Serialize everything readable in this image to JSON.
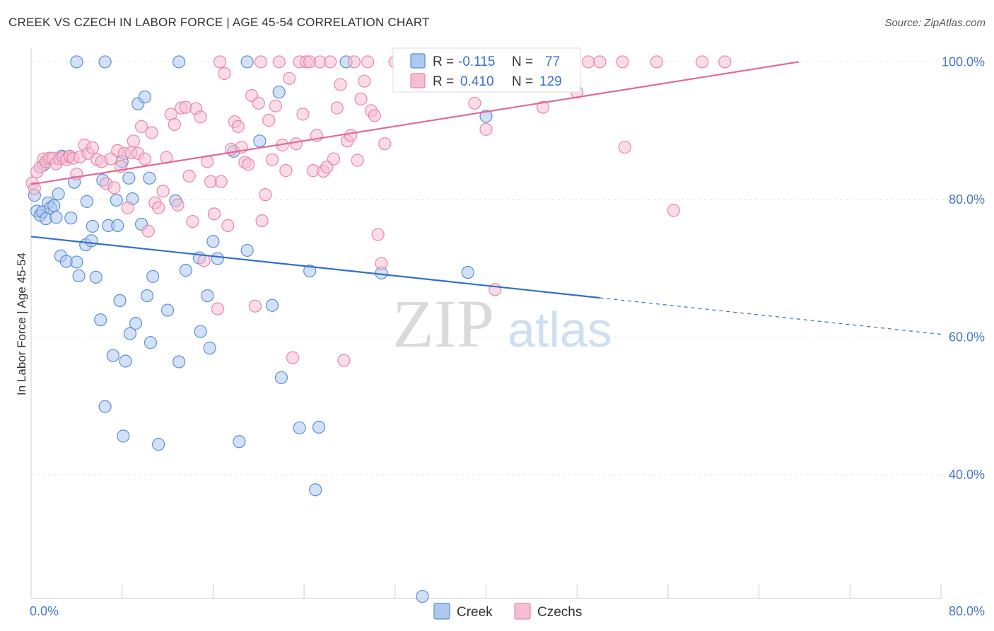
{
  "title": "CREEK VS CZECH IN LABOR FORCE | AGE 45-54 CORRELATION CHART",
  "source": "Source: ZipAtlas.com",
  "watermark": {
    "zip": "ZIP",
    "atlas": "atlas"
  },
  "colors": {
    "creek_fill": "#aec9ef",
    "creek_stroke": "#5b8fd6",
    "creek_line": "#2f6fcc",
    "czech_fill": "#f6bfd1",
    "czech_stroke": "#e886a8",
    "czech_line": "#e06a94",
    "axis_text": "#4a78c8",
    "grid": "#e3e3e3"
  },
  "legend": {
    "rows": [
      {
        "r_label": "R =",
        "r_value": "-0.115",
        "n_label": "N =",
        "n_value": "77"
      },
      {
        "r_label": "R =",
        "r_value": "0.410",
        "n_label": "N =",
        "n_value": "129"
      }
    ]
  },
  "bottom_legend": [
    "Creek",
    "Czechs"
  ],
  "chart_data": {
    "type": "scatter",
    "title": "CREEK VS CZECH IN LABOR FORCE | AGE 45-54 CORRELATION CHART",
    "xlabel": "",
    "ylabel": "In Labor Force | Age 45-54",
    "xlim": [
      0,
      80
    ],
    "ylim": [
      22,
      102
    ],
    "x_tick_labels": [
      "0.0%",
      "80.0%"
    ],
    "y_ticks": [
      40,
      60,
      80,
      100
    ],
    "y_tick_labels": [
      "40.0%",
      "60.0%",
      "80.0%",
      "100.0%"
    ],
    "grid": true,
    "legend_position": "top-center",
    "series": [
      {
        "name": "Creek",
        "r": -0.115,
        "n": 77,
        "trend": {
          "x": [
            0,
            50
          ],
          "y": [
            74.6,
            65.7
          ],
          "dashed_to": [
            80,
            60.4
          ]
        },
        "points": [
          [
            0.3,
            80.6
          ],
          [
            0.5,
            78.3
          ],
          [
            0.8,
            77.7
          ],
          [
            1.0,
            78.2
          ],
          [
            1.3,
            77.2
          ],
          [
            1.5,
            79.5
          ],
          [
            1.7,
            78.8
          ],
          [
            2.0,
            79.1
          ],
          [
            2.2,
            77.4
          ],
          [
            2.4,
            80.8
          ],
          [
            2.6,
            71.8
          ],
          [
            3.1,
            71.0
          ],
          [
            3.3,
            86.2
          ],
          [
            3.5,
            77.3
          ],
          [
            3.8,
            82.5
          ],
          [
            4.0,
            70.9
          ],
          [
            4.2,
            68.9
          ],
          [
            4.8,
            73.4
          ],
          [
            4.9,
            79.7
          ],
          [
            5.3,
            74.0
          ],
          [
            5.4,
            76.1
          ],
          [
            5.7,
            68.7
          ],
          [
            6.1,
            62.5
          ],
          [
            6.3,
            82.8
          ],
          [
            6.5,
            49.9
          ],
          [
            6.8,
            76.2
          ],
          [
            7.2,
            57.3
          ],
          [
            7.5,
            79.9
          ],
          [
            7.6,
            76.2
          ],
          [
            7.8,
            65.3
          ],
          [
            8.0,
            85.5
          ],
          [
            8.1,
            45.6
          ],
          [
            8.3,
            56.5
          ],
          [
            8.6,
            83.1
          ],
          [
            8.7,
            60.5
          ],
          [
            8.9,
            80.1
          ],
          [
            9.2,
            62.0
          ],
          [
            9.4,
            93.9
          ],
          [
            9.7,
            76.4
          ],
          [
            10.0,
            94.9
          ],
          [
            10.2,
            66.0
          ],
          [
            10.4,
            83.1
          ],
          [
            10.5,
            59.2
          ],
          [
            10.7,
            68.8
          ],
          [
            11.2,
            44.4
          ],
          [
            12.0,
            63.9
          ],
          [
            12.7,
            79.8
          ],
          [
            13.0,
            56.4
          ],
          [
            13.6,
            69.7
          ],
          [
            14.8,
            71.5
          ],
          [
            14.9,
            60.8
          ],
          [
            15.5,
            66.0
          ],
          [
            15.7,
            58.4
          ],
          [
            16.0,
            73.9
          ],
          [
            16.4,
            71.4
          ],
          [
            17.8,
            87.0
          ],
          [
            18.3,
            44.8
          ],
          [
            19.0,
            72.6
          ],
          [
            20.1,
            88.5
          ],
          [
            21.2,
            64.6
          ],
          [
            21.8,
            95.6
          ],
          [
            22.0,
            54.1
          ],
          [
            23.6,
            46.8
          ],
          [
            24.5,
            69.6
          ],
          [
            25.3,
            46.9
          ],
          [
            25.0,
            37.8
          ],
          [
            27.7,
            100.0
          ],
          [
            30.8,
            69.3
          ],
          [
            34.4,
            22.3
          ],
          [
            38.4,
            69.4
          ],
          [
            40.0,
            92.1
          ],
          [
            13.0,
            100.0
          ],
          [
            19.0,
            100.0
          ],
          [
            6.5,
            100.0
          ],
          [
            4.0,
            100.0
          ],
          [
            2.7,
            86.3
          ],
          [
            1.1,
            85.0
          ]
        ]
      },
      {
        "name": "Czechs",
        "r": 0.41,
        "n": 129,
        "trend": {
          "x": [
            0,
            67.5
          ],
          "y": [
            82.2,
            100.0
          ]
        },
        "points": [
          [
            0.1,
            82.4
          ],
          [
            0.3,
            81.6
          ],
          [
            0.5,
            84.0
          ],
          [
            0.8,
            84.7
          ],
          [
            1.1,
            85.9
          ],
          [
            1.3,
            85.5
          ],
          [
            1.6,
            86.0
          ],
          [
            1.9,
            86.0
          ],
          [
            2.2,
            85.2
          ],
          [
            2.5,
            85.9
          ],
          [
            2.8,
            86.1
          ],
          [
            3.1,
            85.8
          ],
          [
            3.4,
            86.3
          ],
          [
            3.7,
            86.0
          ],
          [
            4.0,
            83.7
          ],
          [
            4.3,
            86.2
          ],
          [
            4.7,
            87.9
          ],
          [
            5.0,
            86.7
          ],
          [
            5.4,
            87.5
          ],
          [
            5.8,
            85.8
          ],
          [
            6.2,
            85.5
          ],
          [
            6.6,
            82.3
          ],
          [
            7.0,
            85.9
          ],
          [
            7.3,
            81.7
          ],
          [
            7.6,
            87.1
          ],
          [
            7.9,
            84.8
          ],
          [
            8.2,
            86.7
          ],
          [
            8.5,
            78.8
          ],
          [
            8.8,
            86.8
          ],
          [
            9.0,
            88.5
          ],
          [
            9.4,
            86.7
          ],
          [
            9.7,
            90.6
          ],
          [
            10.0,
            85.9
          ],
          [
            10.3,
            75.4
          ],
          [
            10.6,
            89.7
          ],
          [
            10.9,
            79.5
          ],
          [
            11.2,
            78.8
          ],
          [
            11.6,
            81.2
          ],
          [
            11.9,
            86.1
          ],
          [
            12.3,
            92.4
          ],
          [
            12.6,
            90.9
          ],
          [
            12.9,
            79.2
          ],
          [
            13.2,
            93.3
          ],
          [
            13.6,
            93.4
          ],
          [
            13.9,
            83.4
          ],
          [
            14.2,
            76.8
          ],
          [
            14.5,
            93.2
          ],
          [
            14.9,
            92.0
          ],
          [
            15.2,
            71.1
          ],
          [
            15.5,
            85.5
          ],
          [
            15.8,
            82.6
          ],
          [
            16.1,
            77.9
          ],
          [
            16.4,
            64.1
          ],
          [
            16.7,
            82.6
          ],
          [
            17.0,
            98.3
          ],
          [
            17.3,
            76.2
          ],
          [
            17.6,
            87.3
          ],
          [
            17.9,
            91.3
          ],
          [
            18.2,
            90.6
          ],
          [
            18.5,
            87.6
          ],
          [
            18.8,
            85.4
          ],
          [
            19.1,
            85.1
          ],
          [
            19.4,
            95.1
          ],
          [
            19.7,
            64.5
          ],
          [
            20.0,
            94.0
          ],
          [
            20.3,
            76.9
          ],
          [
            20.6,
            80.7
          ],
          [
            20.9,
            91.5
          ],
          [
            21.2,
            85.8
          ],
          [
            21.5,
            93.6
          ],
          [
            21.8,
            100.0
          ],
          [
            22.1,
            87.9
          ],
          [
            22.4,
            84.2
          ],
          [
            22.7,
            97.6
          ],
          [
            23.0,
            57.0
          ],
          [
            23.3,
            88.1
          ],
          [
            23.6,
            100.0
          ],
          [
            23.9,
            92.4
          ],
          [
            24.2,
            100.0
          ],
          [
            24.5,
            100.0
          ],
          [
            24.8,
            84.2
          ],
          [
            25.1,
            89.3
          ],
          [
            25.4,
            100.0
          ],
          [
            25.7,
            84.1
          ],
          [
            26.0,
            84.7
          ],
          [
            26.3,
            100.0
          ],
          [
            26.6,
            85.9
          ],
          [
            26.9,
            93.3
          ],
          [
            27.2,
            96.7
          ],
          [
            27.5,
            56.6
          ],
          [
            27.8,
            88.5
          ],
          [
            28.1,
            89.3
          ],
          [
            28.4,
            100.0
          ],
          [
            28.7,
            85.7
          ],
          [
            29.0,
            94.6
          ],
          [
            29.3,
            97.2
          ],
          [
            29.6,
            100.0
          ],
          [
            29.9,
            92.9
          ],
          [
            30.2,
            92.2
          ],
          [
            30.5,
            74.9
          ],
          [
            30.8,
            70.7
          ],
          [
            31.1,
            88.1
          ],
          [
            32.0,
            100.0
          ],
          [
            33.0,
            100.0
          ],
          [
            34.0,
            100.0
          ],
          [
            35.0,
            100.0
          ],
          [
            36.0,
            100.0
          ],
          [
            37.0,
            100.0
          ],
          [
            38.0,
            100.0
          ],
          [
            39.0,
            94.0
          ],
          [
            40.0,
            90.2
          ],
          [
            40.8,
            66.9
          ],
          [
            42.0,
            100.0
          ],
          [
            43.0,
            100.0
          ],
          [
            44.0,
            100.0
          ],
          [
            45.0,
            93.4
          ],
          [
            46.0,
            100.0
          ],
          [
            48.0,
            95.6
          ],
          [
            49.0,
            100.0
          ],
          [
            50.0,
            100.0
          ],
          [
            52.0,
            100.0
          ],
          [
            52.2,
            87.6
          ],
          [
            55.0,
            100.0
          ],
          [
            56.5,
            78.4
          ],
          [
            59.0,
            100.0
          ],
          [
            61.0,
            100.0
          ],
          [
            16.6,
            100.0
          ],
          [
            20.2,
            100.0
          ]
        ]
      }
    ]
  }
}
